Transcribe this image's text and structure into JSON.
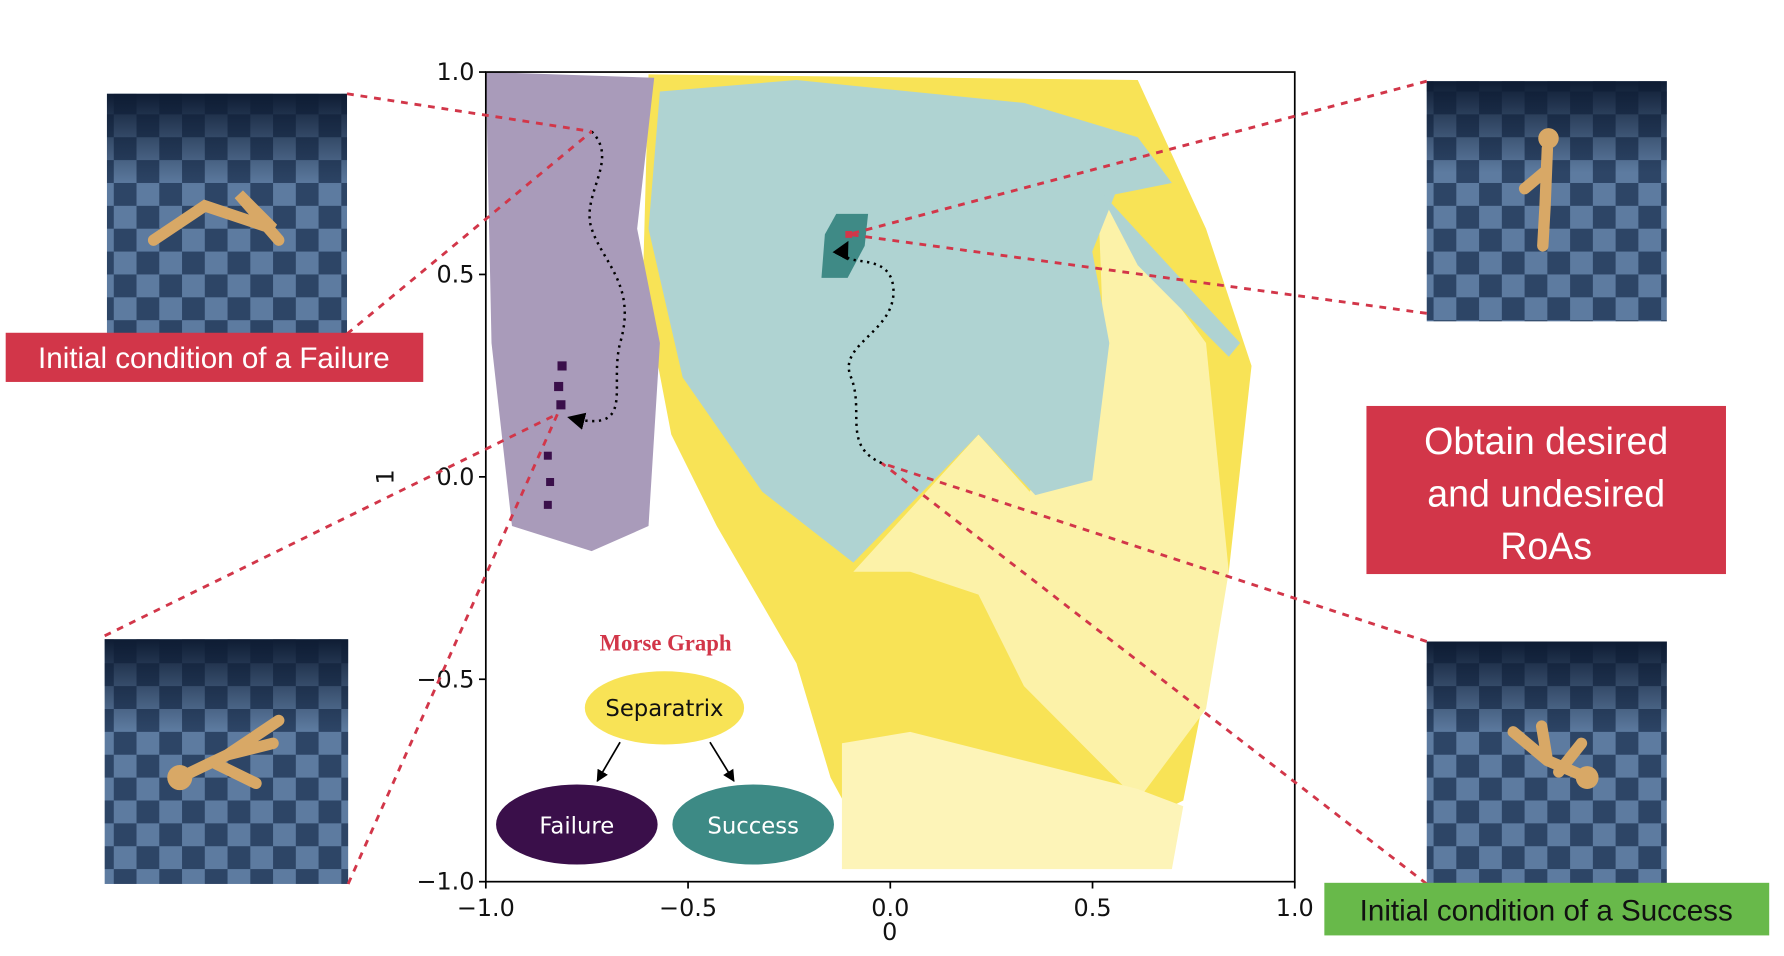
{
  "plot": {
    "xlabel": "0",
    "ylabel": "1",
    "xlim": [
      -1,
      1
    ],
    "ylim": [
      -1,
      1
    ],
    "xticks": [
      {
        "value": -1,
        "label": "−1.0"
      },
      {
        "value": -0.5,
        "label": "−0.5"
      },
      {
        "value": 0,
        "label": "0.0"
      },
      0.5,
      {
        "value": 1,
        "label": "1.0"
      }
    ],
    "yticks": [
      {
        "value": -1,
        "label": "−1.0"
      },
      {
        "value": -0.5,
        "label": "−0.5"
      },
      {
        "value": 0,
        "label": "0.0"
      },
      0.5,
      {
        "value": 1,
        "label": "1.0"
      }
    ]
  },
  "morse_graph": {
    "title": "Morse Graph",
    "nodes": [
      "Separatrix",
      "Failure",
      "Success"
    ]
  },
  "callouts": {
    "failure": "Initial condition of a Failure",
    "success": "Initial condition of a Success",
    "roas": [
      "Obtain desired",
      "and undesired",
      "RoAs"
    ]
  }
}
